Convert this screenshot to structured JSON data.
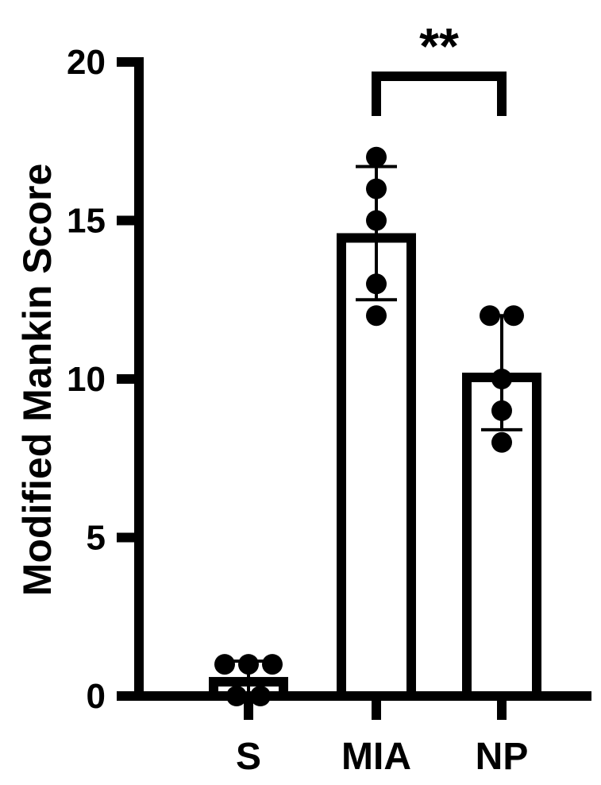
{
  "chart_data": {
    "type": "bar",
    "title": "",
    "xlabel": "",
    "ylabel": "Modified Mankin Score",
    "ylim": [
      0,
      20
    ],
    "yticks": [
      "0",
      "5",
      "10",
      "15",
      "20"
    ],
    "categories": [
      "S",
      "MIA",
      "NP"
    ],
    "values": [
      0.6,
      14.6,
      10.2
    ],
    "error_bars": [
      {
        "low": 0.1,
        "high": 1.1
      },
      {
        "low": 12.5,
        "high": 16.7
      },
      {
        "low": 8.4,
        "high": 12.0
      }
    ],
    "points": [
      [
        1.0,
        1.0,
        1.0,
        0.0,
        0.0
      ],
      [
        17.0,
        16.0,
        15.0,
        13.0,
        12.0
      ],
      [
        12.0,
        12.0,
        10.0,
        9.0,
        8.0
      ]
    ],
    "significance": {
      "from": "MIA",
      "to": "NP",
      "label": "**"
    },
    "grid": false,
    "bar_fill": "#ffffff",
    "stroke_color": "#000000"
  }
}
